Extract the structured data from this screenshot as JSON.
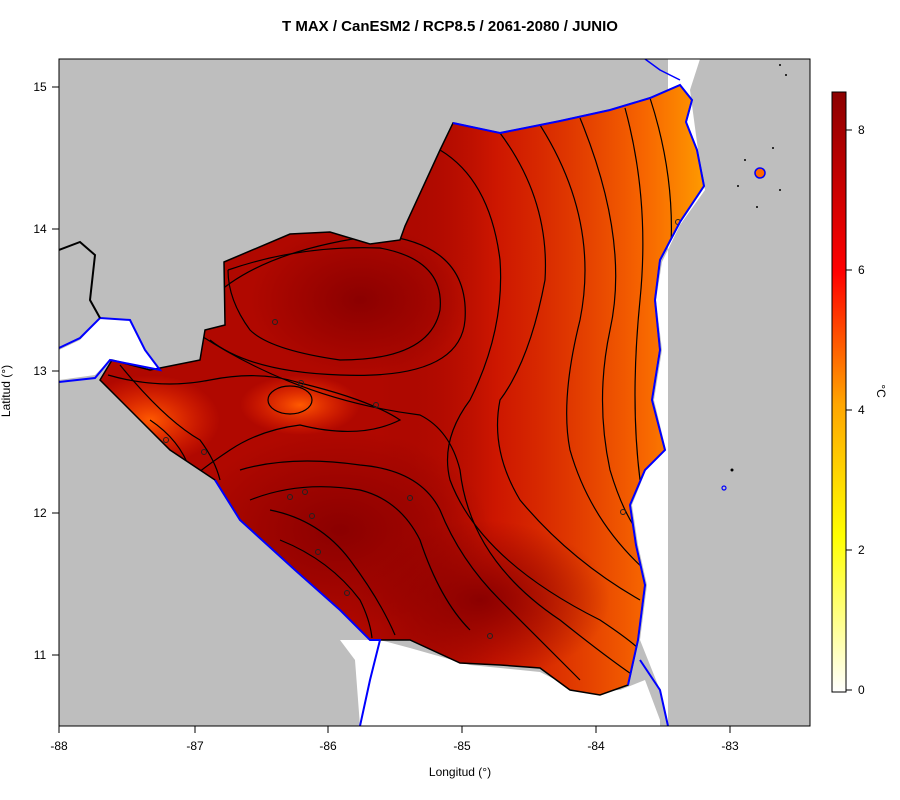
{
  "map": {
    "title": "T MAX / CanESM2 / RCP8.5 / 2061-2080 / JUNIO",
    "xlabel": "Longitud (°)",
    "ylabel": "Latitud (°)",
    "x_ticks": [
      "-88",
      "-87",
      "-86",
      "-85",
      "-84",
      "-83"
    ],
    "y_ticks": [
      "11",
      "12",
      "13",
      "14",
      "15"
    ],
    "lon_range": [
      -88,
      -82.4
    ],
    "lat_range": [
      10.5,
      15.2
    ],
    "background_color": "#bebebe",
    "coast_color": "#0000ff"
  },
  "colorbar": {
    "label": "°C",
    "ticks": [
      "0",
      "2",
      "4",
      "6",
      "8"
    ],
    "range": [
      -0.3,
      8.6
    ],
    "colors": [
      "#ffffff",
      "#ffff00",
      "#ffa500",
      "#ff0000",
      "#8b0000"
    ]
  }
}
